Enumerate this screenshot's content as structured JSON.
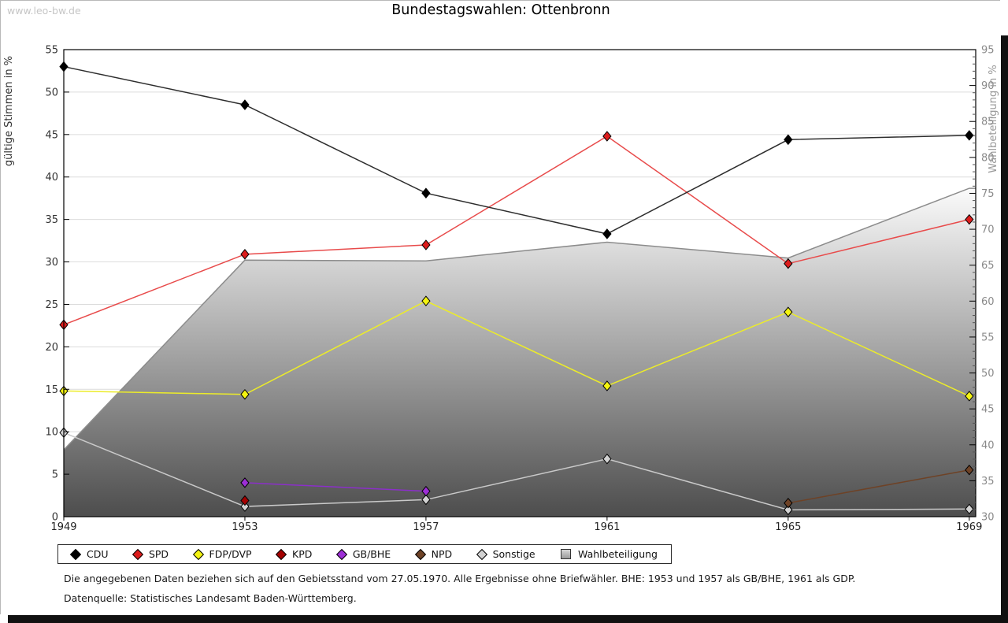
{
  "watermark": "www.leo-bw.de",
  "title": "Bundestagswahlen: Ottenbronn",
  "footnotes": {
    "line1": "Die angegebenen Daten beziehen sich auf den Gebietsstand vom 27.05.1970. Alle Ergebnisse ohne Briefwähler. BHE: 1953 und 1957 als GB/BHE, 1961 als GDP.",
    "line2": "Datenquelle: Statistisches Landesamt Baden-Württemberg."
  },
  "colors": {
    "gridline": "#dcdcdc",
    "frame": "#000000",
    "area_top": "#fbfbfb",
    "area_bottom": "#4d4d4d",
    "area_edge": "#8c8c8c",
    "left_tick_text": "#333333",
    "right_tick_text": "#8a8a8a",
    "x_tick_text": "#222222",
    "left_axis_title": "#333333",
    "right_axis_title": "#999999"
  },
  "chart_data": {
    "type": "line",
    "title": "Bundestagswahlen: Ottenbronn",
    "categories": [
      "1949",
      "1953",
      "1957",
      "1961",
      "1965",
      "1969"
    ],
    "left_axis": {
      "label": "gültige Stimmen in %",
      "range": [
        0,
        55
      ],
      "tick_step": 5,
      "tick_labels": [
        "0",
        "5",
        "10",
        "15",
        "20",
        "25",
        "30",
        "35",
        "40",
        "45",
        "50",
        "55"
      ]
    },
    "right_axis": {
      "label": "Wahlbeteiligung in %",
      "range": [
        30,
        95
      ],
      "tick_step": 5,
      "minor_tick_step": 1,
      "tick_labels": [
        "30",
        "35",
        "40",
        "45",
        "50",
        "55",
        "60",
        "65",
        "70",
        "75",
        "80",
        "85",
        "90",
        "95"
      ]
    },
    "grid": "horizontal gridlines at every 5 of left axis",
    "legend_position": "bottom",
    "series": [
      {
        "name": "CDU",
        "axis": "left",
        "kind": "line",
        "marker": "diamond",
        "marker_color": "#000000",
        "line_color": "#2e2e2e",
        "values": [
          53.0,
          48.5,
          38.1,
          33.3,
          44.4,
          44.9
        ]
      },
      {
        "name": "SPD",
        "axis": "left",
        "kind": "line",
        "marker": "diamond",
        "marker_color": "#dd1c1c",
        "line_color": "#e84b4b",
        "values": [
          22.6,
          30.9,
          32.0,
          44.8,
          29.8,
          35.0
        ]
      },
      {
        "name": "FDP/DVP",
        "axis": "left",
        "kind": "line",
        "marker": "diamond",
        "marker_color": "#f4f411",
        "line_color": "#ecec29",
        "values": [
          14.8,
          14.4,
          25.4,
          15.4,
          24.1,
          14.2
        ]
      },
      {
        "name": "KPD",
        "axis": "left",
        "kind": "line",
        "marker": "diamond",
        "marker_color": "#a40000",
        "line_color": "#a40000",
        "values": [
          null,
          1.9,
          null,
          null,
          null,
          null
        ]
      },
      {
        "name": "GB/BHE",
        "axis": "left",
        "kind": "line",
        "marker": "diamond",
        "marker_color": "#9d2fd6",
        "line_color": "#8b2fc9",
        "values": [
          null,
          4.0,
          3.0,
          null,
          null,
          null
        ]
      },
      {
        "name": "NPD",
        "axis": "left",
        "kind": "line",
        "marker": "diamond",
        "marker_color": "#6e4226",
        "line_color": "#6e4226",
        "values": [
          null,
          null,
          null,
          null,
          1.6,
          5.5
        ]
      },
      {
        "name": "Sonstige",
        "axis": "left",
        "kind": "line",
        "marker": "diamond",
        "marker_color": "#d2d2d2",
        "line_color": "#c9c9c9",
        "values": [
          9.9,
          1.2,
          2.0,
          6.8,
          0.8,
          0.9
        ]
      },
      {
        "name": "Wahlbeteiligung",
        "axis": "right",
        "kind": "area",
        "marker": "none",
        "values": [
          39.3,
          65.7,
          65.6,
          68.2,
          66.0,
          75.7
        ]
      }
    ]
  },
  "legend": {
    "items": [
      {
        "label": "CDU",
        "marker": "diamond",
        "color": "#000000"
      },
      {
        "label": "SPD",
        "marker": "diamond",
        "color": "#dd1c1c"
      },
      {
        "label": "FDP/DVP",
        "marker": "diamond",
        "color": "#f4f411"
      },
      {
        "label": "KPD",
        "marker": "diamond",
        "color": "#a40000"
      },
      {
        "label": "GB/BHE",
        "marker": "diamond",
        "color": "#9d2fd6"
      },
      {
        "label": "NPD",
        "marker": "diamond",
        "color": "#6e4226"
      },
      {
        "label": "Sonstige",
        "marker": "diamond",
        "color": "#d2d2d2"
      },
      {
        "label": "Wahlbeteiligung",
        "marker": "square",
        "color": "#c0c0c0"
      }
    ]
  }
}
